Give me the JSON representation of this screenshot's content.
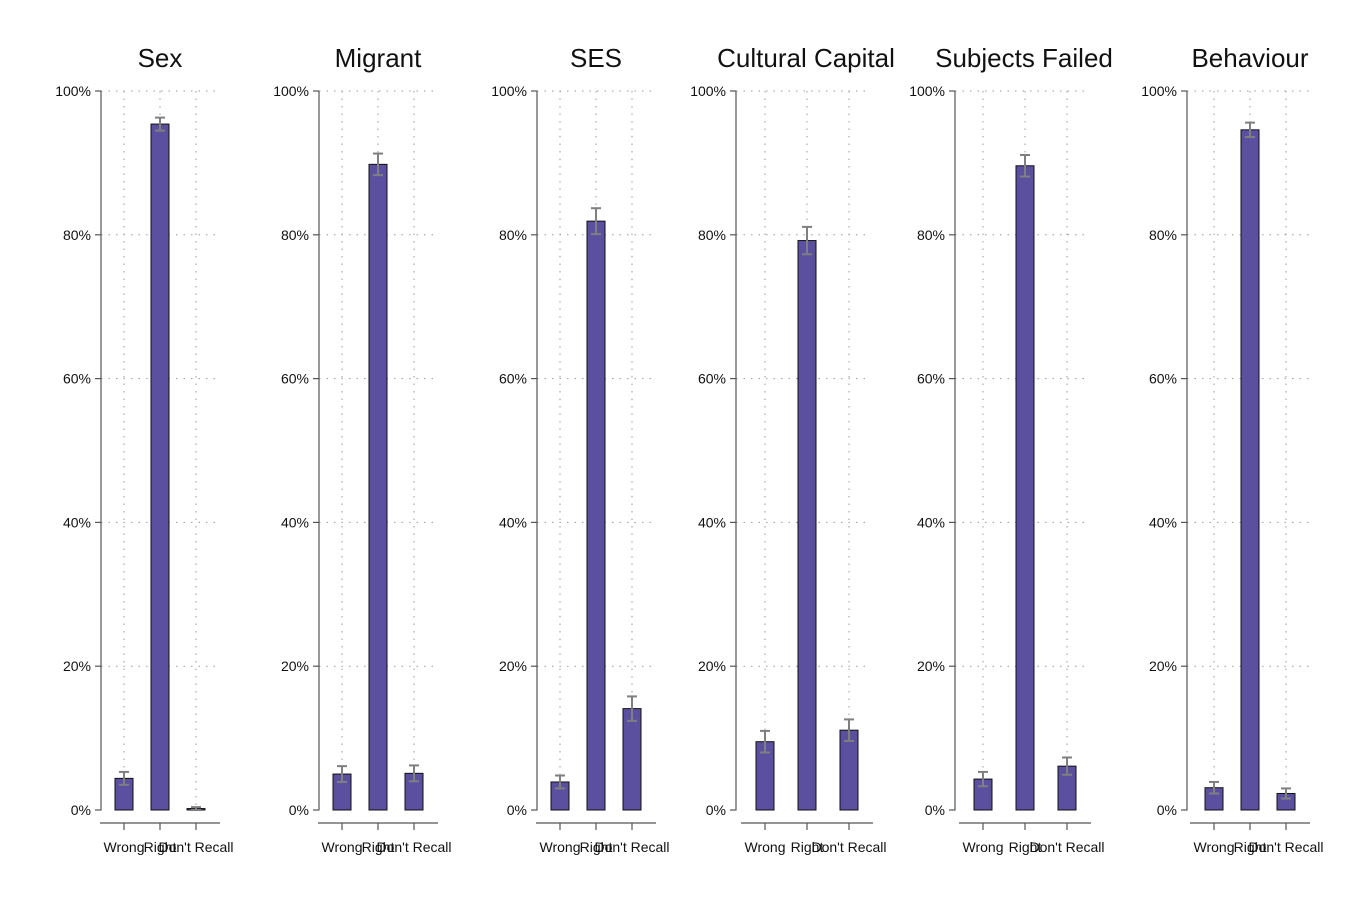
{
  "colors": {
    "bar_fill": "#5b50a0",
    "bar_stroke": "#111111",
    "error_bar": "#7f7f7f",
    "grid": "#9a9a9a",
    "axis": "#555555"
  },
  "chart_data": [
    {
      "type": "bar",
      "title": "Sex",
      "categories": [
        "Wrong",
        "Right",
        "Don't Recall"
      ],
      "values": [
        4.4,
        95.4,
        0.2
      ],
      "error_low": [
        3.5,
        94.5,
        0.0
      ],
      "error_high": [
        5.3,
        96.3,
        0.4
      ],
      "ylim": [
        0,
        100
      ],
      "yticks": [
        "0%",
        "20%",
        "40%",
        "60%",
        "80%",
        "100%"
      ],
      "grid": true
    },
    {
      "type": "bar",
      "title": "Migrant",
      "categories": [
        "Wrong",
        "Right",
        "Don't Recall"
      ],
      "values": [
        5.0,
        89.8,
        5.1
      ],
      "error_low": [
        3.9,
        88.3,
        4.0
      ],
      "error_high": [
        6.1,
        91.3,
        6.2
      ],
      "ylim": [
        0,
        100
      ],
      "yticks": [
        "0%",
        "20%",
        "40%",
        "60%",
        "80%",
        "100%"
      ],
      "grid": true
    },
    {
      "type": "bar",
      "title": "SES",
      "categories": [
        "Wrong",
        "Right",
        "Don't Recall"
      ],
      "values": [
        3.9,
        81.9,
        14.1
      ],
      "error_low": [
        3.0,
        80.1,
        12.4
      ],
      "error_high": [
        4.8,
        83.7,
        15.8
      ],
      "ylim": [
        0,
        100
      ],
      "yticks": [
        "0%",
        "20%",
        "40%",
        "60%",
        "80%",
        "100%"
      ],
      "grid": true
    },
    {
      "type": "bar",
      "title": "Cultural Capital",
      "categories": [
        "Wrong",
        "Right",
        "Don't Recall"
      ],
      "values": [
        9.5,
        79.2,
        11.1
      ],
      "error_low": [
        8.0,
        77.3,
        9.6
      ],
      "error_high": [
        11.0,
        81.1,
        12.6
      ],
      "ylim": [
        0,
        100
      ],
      "yticks": [
        "0%",
        "20%",
        "40%",
        "60%",
        "80%",
        "100%"
      ],
      "grid": true
    },
    {
      "type": "bar",
      "title": "Subjects Failed",
      "categories": [
        "Wrong",
        "Right",
        "Don't Recall"
      ],
      "values": [
        4.3,
        89.6,
        6.1
      ],
      "error_low": [
        3.3,
        88.1,
        4.9
      ],
      "error_high": [
        5.3,
        91.1,
        7.3
      ],
      "ylim": [
        0,
        100
      ],
      "yticks": [
        "0%",
        "20%",
        "40%",
        "60%",
        "80%",
        "100%"
      ],
      "grid": true
    },
    {
      "type": "bar",
      "title": "Behaviour",
      "categories": [
        "Wrong",
        "Right",
        "Don't Recall"
      ],
      "values": [
        3.1,
        94.6,
        2.3
      ],
      "error_low": [
        2.3,
        93.6,
        1.6
      ],
      "error_high": [
        3.9,
        95.6,
        3.0
      ],
      "ylim": [
        0,
        100
      ],
      "yticks": [
        "0%",
        "20%",
        "40%",
        "60%",
        "80%",
        "100%"
      ],
      "grid": true
    }
  ]
}
